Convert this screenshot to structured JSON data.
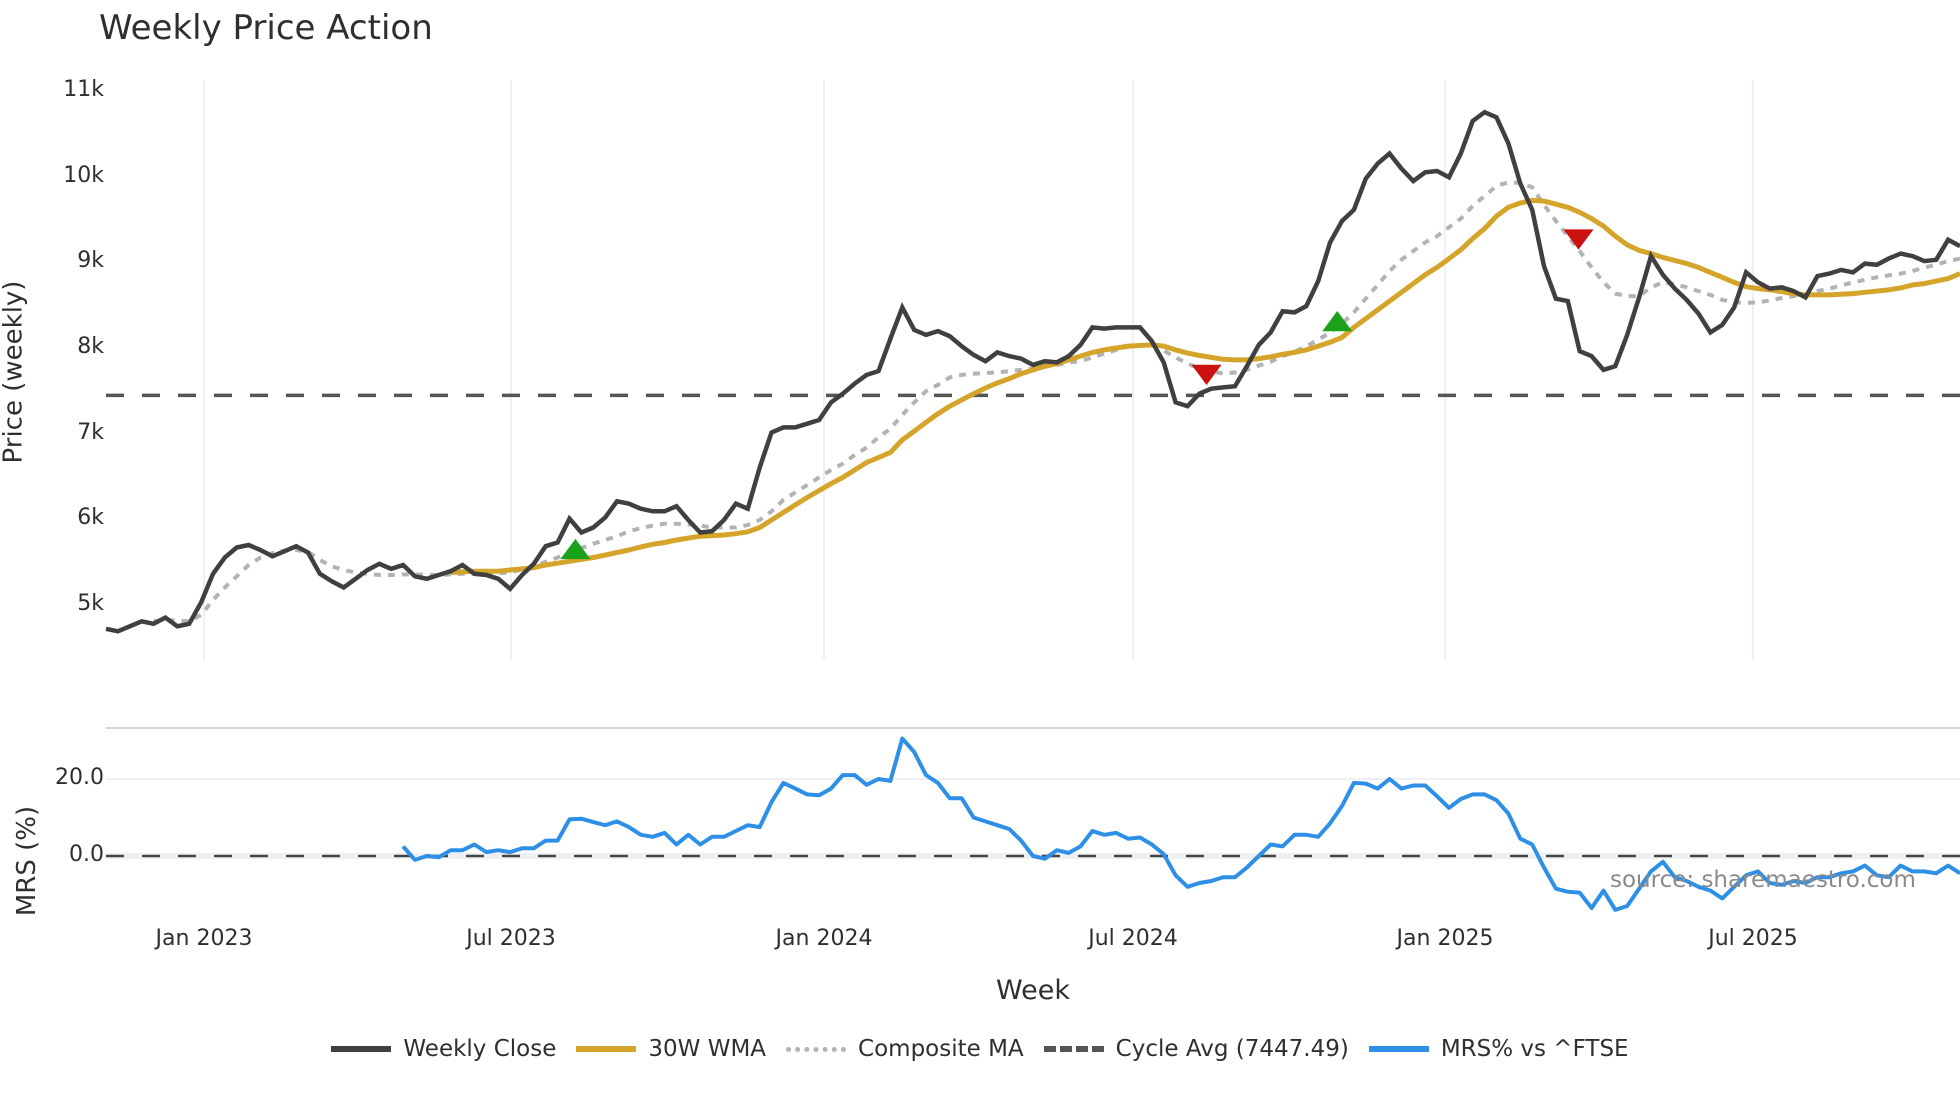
{
  "title": "Weekly Price Action",
  "top_panel": {
    "ylabel": "Price (weekly)",
    "yticks": [
      "11k",
      "10k",
      "9k",
      "8k",
      "7k",
      "6k",
      "5k"
    ]
  },
  "bottom_panel": {
    "ylabel": "MRS (%)",
    "yticks": [
      "20.0",
      "0.0"
    ]
  },
  "xaxis": {
    "label": "Week",
    "ticks": [
      "Jan 2023",
      "Jul 2023",
      "Jan 2024",
      "Jul 2024",
      "Jan 2025",
      "Jul 2025"
    ]
  },
  "source": "source: sharemaestro.com",
  "legend": [
    {
      "label": "Weekly Close",
      "color": "#404040",
      "style": "solid"
    },
    {
      "label": "30W WMA",
      "color": "#d4a52a",
      "style": "solid"
    },
    {
      "label": "Composite MA",
      "color": "#b3b3b3",
      "style": "dotted"
    },
    {
      "label": "Cycle Avg (7447.49)",
      "color": "#555555",
      "style": "dashed"
    },
    {
      "label": "MRS% vs ^FTSE",
      "color": "#2e8fe6",
      "style": "solid"
    }
  ],
  "colors": {
    "close": "#404040",
    "wma": "#d4a52a",
    "composite": "#b3b3b3",
    "cycle": "#555555",
    "mrs": "#2e8fe6",
    "buy_marker": "#1aa31a",
    "sell_marker": "#cc1111",
    "grid": "#eef0f3"
  },
  "chart_data": [
    {
      "type": "line",
      "title": "Weekly Price Action",
      "xlabel": "Week",
      "ylabel": "Price (weekly)",
      "ylim": [
        4500,
        11300
      ],
      "x_ticks": [
        "Jan 2023",
        "Jul 2023",
        "Jan 2024",
        "Jul 2024",
        "Jan 2025",
        "Jul 2025"
      ],
      "x_start": "2022-11 (week 0)",
      "x_step": "1 week",
      "series": [
        {
          "name": "Weekly Close",
          "start_index": 0,
          "values": [
            4722,
            4693,
            4751,
            4810,
            4780,
            4853,
            4751,
            4780,
            5029,
            5364,
            5554,
            5671,
            5700,
            5642,
            5569,
            5627,
            5686,
            5613,
            5364,
            5277,
            5204,
            5306,
            5408,
            5481,
            5423,
            5467,
            5335,
            5306,
            5350,
            5394,
            5467,
            5364,
            5350,
            5306,
            5189,
            5350,
            5481,
            5686,
            5730,
            6007,
            5846,
            5905,
            6021,
            6211,
            6182,
            6124,
            6094,
            6094,
            6153,
            5992,
            5846,
            5861,
            5992,
            6182,
            6124,
            6605,
            7014,
            7073,
            7073,
            7116,
            7160,
            7365,
            7467,
            7584,
            7686,
            7730,
            8109,
            8474,
            8211,
            8153,
            8197,
            8138,
            8021,
            7919,
            7846,
            7949,
            7905,
            7876,
            7803,
            7846,
            7832,
            7905,
            8036,
            8241,
            8226,
            8241,
            8241,
            8241,
            8080,
            7832,
            7365,
            7321,
            7467,
            7525,
            7540,
            7554,
            7788,
            8036,
            8182,
            8430,
            8416,
            8489,
            8781,
            9233,
            9482,
            9613,
            9978,
            10153,
            10270,
            10095,
            9949,
            10051,
            10066,
            9993,
            10270,
            10650,
            10752,
            10693,
            10387,
            9920,
            9613,
            8956,
            8576,
            8547,
            7963,
            7905,
            7744,
            7788,
            8153,
            8591,
            9073,
            8854,
            8693,
            8562,
            8401,
            8182,
            8270,
            8474,
            8883,
            8766,
            8693,
            8708,
            8664,
            8591,
            8839,
            8868,
            8912,
            8883,
            8985,
            8971,
            9044,
            9102,
            9073,
            9014,
            9029,
            9263,
            9190
          ]
        },
        {
          "name": "30W WMA",
          "start_index": 29,
          "values": [
            5379,
            5386,
            5394,
            5394,
            5394,
            5408,
            5423,
            5437,
            5467,
            5488,
            5510,
            5532,
            5554,
            5583,
            5613,
            5642,
            5678,
            5708,
            5730,
            5759,
            5781,
            5803,
            5810,
            5817,
            5832,
            5854,
            5905,
            5992,
            6080,
            6168,
            6255,
            6335,
            6416,
            6489,
            6576,
            6664,
            6722,
            6781,
            6927,
            7029,
            7131,
            7233,
            7321,
            7394,
            7467,
            7533,
            7591,
            7642,
            7700,
            7744,
            7788,
            7817,
            7861,
            7905,
            7949,
            7978,
            8000,
            8022,
            8029,
            8036,
            8022,
            7978,
            7941,
            7912,
            7890,
            7868,
            7861,
            7861,
            7876,
            7897,
            7927,
            7949,
            7978,
            8022,
            8066,
            8124,
            8241,
            8343,
            8445,
            8547,
            8649,
            8752,
            8854,
            8941,
            9044,
            9146,
            9277,
            9394,
            9540,
            9642,
            9693,
            9723,
            9715,
            9679,
            9642,
            9584,
            9511,
            9423,
            9306,
            9204,
            9139,
            9102,
            9058,
            9022,
            8985,
            8941,
            8883,
            8825,
            8766,
            8715,
            8693,
            8679,
            8657,
            8635,
            8620,
            8620,
            8620,
            8628,
            8635,
            8650,
            8664,
            8679,
            8701,
            8737,
            8752,
            8781,
            8810,
            8868
          ]
        },
        {
          "name": "Composite MA",
          "start_index": 4,
          "values": [
            4810,
            4824,
            4817,
            4810,
            4883,
            5058,
            5204,
            5335,
            5467,
            5554,
            5605,
            5635,
            5642,
            5620,
            5525,
            5452,
            5408,
            5379,
            5364,
            5350,
            5350,
            5357,
            5357,
            5350,
            5350,
            5357,
            5364,
            5364,
            5364,
            5372,
            5379,
            5415,
            5452,
            5503,
            5554,
            5620,
            5664,
            5715,
            5759,
            5803,
            5861,
            5897,
            5927,
            5948,
            5948,
            5941,
            5927,
            5905,
            5905,
            5905,
            5934,
            5992,
            6094,
            6226,
            6314,
            6401,
            6489,
            6576,
            6649,
            6751,
            6839,
            6956,
            7058,
            7219,
            7365,
            7496,
            7569,
            7657,
            7686,
            7700,
            7708,
            7715,
            7730,
            7744,
            7759,
            7781,
            7803,
            7832,
            7846,
            7890,
            7934,
            7978,
            8015,
            8036,
            8036,
            7971,
            7890,
            7817,
            7759,
            7730,
            7700,
            7715,
            7744,
            7795,
            7839,
            7905,
            7956,
            8022,
            8095,
            8182,
            8284,
            8416,
            8577,
            8737,
            8898,
            9029,
            9131,
            9233,
            9306,
            9409,
            9511,
            9657,
            9774,
            9891,
            9934,
            9927,
            9876,
            9671,
            9482,
            9306,
            9131,
            8941,
            8766,
            8635,
            8606,
            8606,
            8708,
            8766,
            8744,
            8708,
            8664,
            8620,
            8562,
            8533,
            8525,
            8533,
            8555,
            8584,
            8606,
            8628,
            8664,
            8693,
            8730,
            8766,
            8796,
            8825,
            8847,
            8868,
            8898,
            8941,
            8971,
            9015,
            9044
          ]
        },
        {
          "name": "Cycle Avg (7447.49)",
          "constant": 7447.49
        }
      ],
      "markers": [
        {
          "type": "buy",
          "shape": "triangle-up",
          "index": 39.5,
          "price": 5640
        },
        {
          "type": "sell",
          "shape": "triangle-down",
          "index": 92.6,
          "price": 7700
        },
        {
          "type": "buy",
          "shape": "triangle-up",
          "index": 103.6,
          "price": 8300
        },
        {
          "type": "sell",
          "shape": "triangle-down",
          "index": 123.9,
          "price": 9280
        }
      ],
      "grid": true,
      "legend_position": "bottom"
    },
    {
      "type": "line",
      "ylabel": "MRS (%)",
      "ylim": [
        -18,
        33
      ],
      "y_ticks": [
        20.0,
        0.0
      ],
      "series": [
        {
          "name": "MRS% vs ^FTSE",
          "start_index": 25,
          "values": [
            2.5,
            -1,
            0,
            -0.3,
            1.5,
            1.5,
            3,
            1,
            1.5,
            1,
            2,
            2,
            4,
            4,
            9.5,
            9.7,
            8.8,
            8,
            9,
            7.5,
            5.5,
            5,
            6,
            3,
            5.5,
            3,
            5,
            5,
            6.5,
            8,
            7.5,
            14,
            19,
            17.5,
            16,
            15.8,
            17.5,
            21,
            21,
            18.5,
            20,
            19.5,
            30.5,
            27,
            21,
            19,
            15,
            15,
            10,
            9,
            8,
            7,
            4,
            0,
            -0.7,
            1.5,
            0.8,
            2.5,
            6.5,
            5.5,
            6,
            4.5,
            4.8,
            3,
            0.5,
            -5,
            -8,
            -7,
            -6.5,
            -5.5,
            -5.5,
            -3,
            0,
            3,
            2.5,
            5.5,
            5.5,
            5,
            8.5,
            13,
            19,
            18.8,
            17.5,
            20,
            17.5,
            18.3,
            18.3,
            15.5,
            12.5,
            14.8,
            16,
            16,
            14.5,
            11,
            4.5,
            3,
            -3,
            -8.5,
            -9.3,
            -9.5,
            -13.5,
            -9,
            -14,
            -13,
            -8.5,
            -4,
            -1.5,
            -5.5,
            -6.5,
            -8,
            -9,
            -11,
            -8,
            -5,
            -4,
            -7,
            -7.5,
            -6.5,
            -7,
            -5.5,
            -5.5,
            -4.5,
            -4,
            -2.5,
            -5,
            -5.5,
            -2.5,
            -4,
            -4,
            -4.5,
            -2.5,
            -4.5
          ]
        },
        {
          "name": "Zero line",
          "constant": 0
        }
      ]
    }
  ]
}
